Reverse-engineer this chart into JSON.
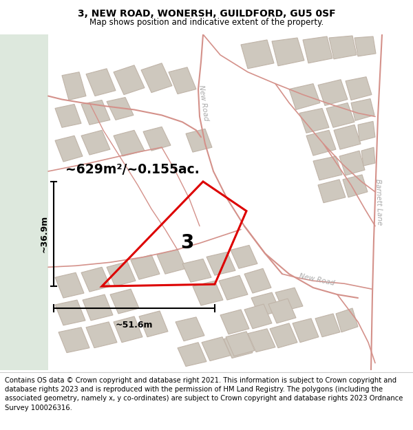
{
  "title": "3, NEW ROAD, WONERSH, GUILDFORD, GU5 0SF",
  "subtitle": "Map shows position and indicative extent of the property.",
  "footer": "Contains OS data © Crown copyright and database right 2021. This information is subject to Crown copyright and database rights 2023 and is reproduced with the permission of HM Land Registry. The polygons (including the associated geometry, namely x, y co-ordinates) are subject to Crown copyright and database rights 2023 Ordnance Survey 100026316.",
  "area_label": "~629m²/~0.155ac.",
  "width_label": "~51.6m",
  "height_label": "~36.9m",
  "number_label": "3",
  "map_bg": "#f2efe8",
  "left_bg": "#dde8dd",
  "road_line_color": "#d4918a",
  "building_fill": "#cec8be",
  "building_edge": "#c0b4a8",
  "highlight_color": "#dd0000",
  "road_label_color": "#aaaaaa",
  "title_fontsize": 10,
  "subtitle_fontsize": 8.5,
  "footer_fontsize": 7.2
}
